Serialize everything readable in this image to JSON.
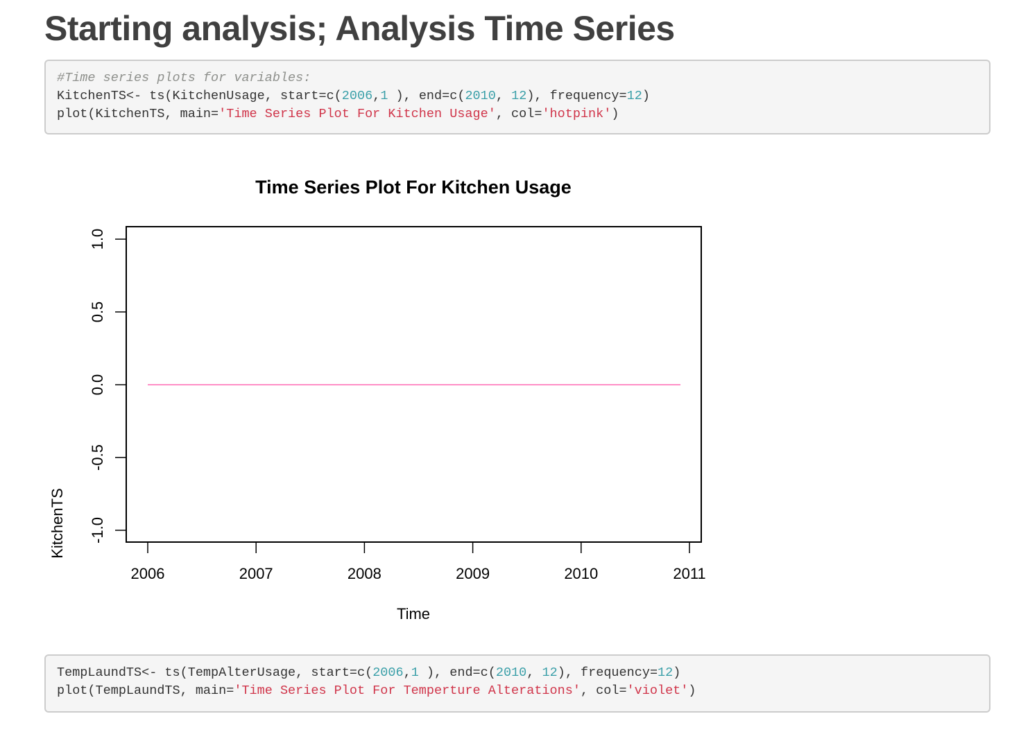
{
  "page": {
    "title": "Starting analysis; Analysis Time Series"
  },
  "code_blocks": [
    {
      "lines": [
        [
          {
            "t": "comment",
            "v": "#Time series plots for variables:"
          }
        ],
        [
          {
            "t": "plain",
            "v": "KitchenTS<- ts(KitchenUsage, start=c("
          },
          {
            "t": "number",
            "v": "2006"
          },
          {
            "t": "plain",
            "v": ","
          },
          {
            "t": "number",
            "v": "1"
          },
          {
            "t": "plain",
            "v": " ), end=c("
          },
          {
            "t": "number",
            "v": "2010"
          },
          {
            "t": "plain",
            "v": ", "
          },
          {
            "t": "number",
            "v": "12"
          },
          {
            "t": "plain",
            "v": "), frequency="
          },
          {
            "t": "number",
            "v": "12"
          },
          {
            "t": "plain",
            "v": ")"
          }
        ],
        [
          {
            "t": "plain",
            "v": "plot(KitchenTS, main="
          },
          {
            "t": "string",
            "v": "'Time Series Plot For Kitchen Usage'"
          },
          {
            "t": "plain",
            "v": ", col="
          },
          {
            "t": "string",
            "v": "'hotpink'"
          },
          {
            "t": "plain",
            "v": ")"
          }
        ]
      ]
    },
    {
      "lines": [
        [
          {
            "t": "plain",
            "v": "TempLaundTS<- ts(TempAlterUsage, start=c("
          },
          {
            "t": "number",
            "v": "2006"
          },
          {
            "t": "plain",
            "v": ","
          },
          {
            "t": "number",
            "v": "1"
          },
          {
            "t": "plain",
            "v": " ), end=c("
          },
          {
            "t": "number",
            "v": "2010"
          },
          {
            "t": "plain",
            "v": ", "
          },
          {
            "t": "number",
            "v": "12"
          },
          {
            "t": "plain",
            "v": "), frequency="
          },
          {
            "t": "number",
            "v": "12"
          },
          {
            "t": "plain",
            "v": ")"
          }
        ],
        [
          {
            "t": "plain",
            "v": "plot(TempLaundTS, main="
          },
          {
            "t": "string",
            "v": "'Time Series Plot For Temperture Alterations'"
          },
          {
            "t": "plain",
            "v": ", col="
          },
          {
            "t": "string",
            "v": "'violet'"
          },
          {
            "t": "plain",
            "v": ")"
          }
        ]
      ]
    }
  ],
  "chart_data": {
    "type": "line",
    "title": "Time Series Plot For Kitchen Usage",
    "xlabel": "Time",
    "ylabel": "KitchenTS",
    "xlim": [
      2006,
      2011
    ],
    "ylim": [
      -1.0,
      1.0
    ],
    "x_ticks": [
      2006,
      2007,
      2008,
      2009,
      2010,
      2011
    ],
    "x_tick_labels": [
      "2006",
      "2007",
      "2008",
      "2009",
      "2010",
      "2011"
    ],
    "y_ticks": [
      -1.0,
      -0.5,
      0.0,
      0.5,
      1.0
    ],
    "y_tick_labels": [
      "-1.0",
      "-0.5",
      "0.0",
      "0.5",
      "1.0"
    ],
    "grid": false,
    "series": [
      {
        "color": "#ff69b4",
        "x": [
          2006.0,
          2010.917
        ],
        "y": [
          0,
          0
        ]
      }
    ]
  }
}
